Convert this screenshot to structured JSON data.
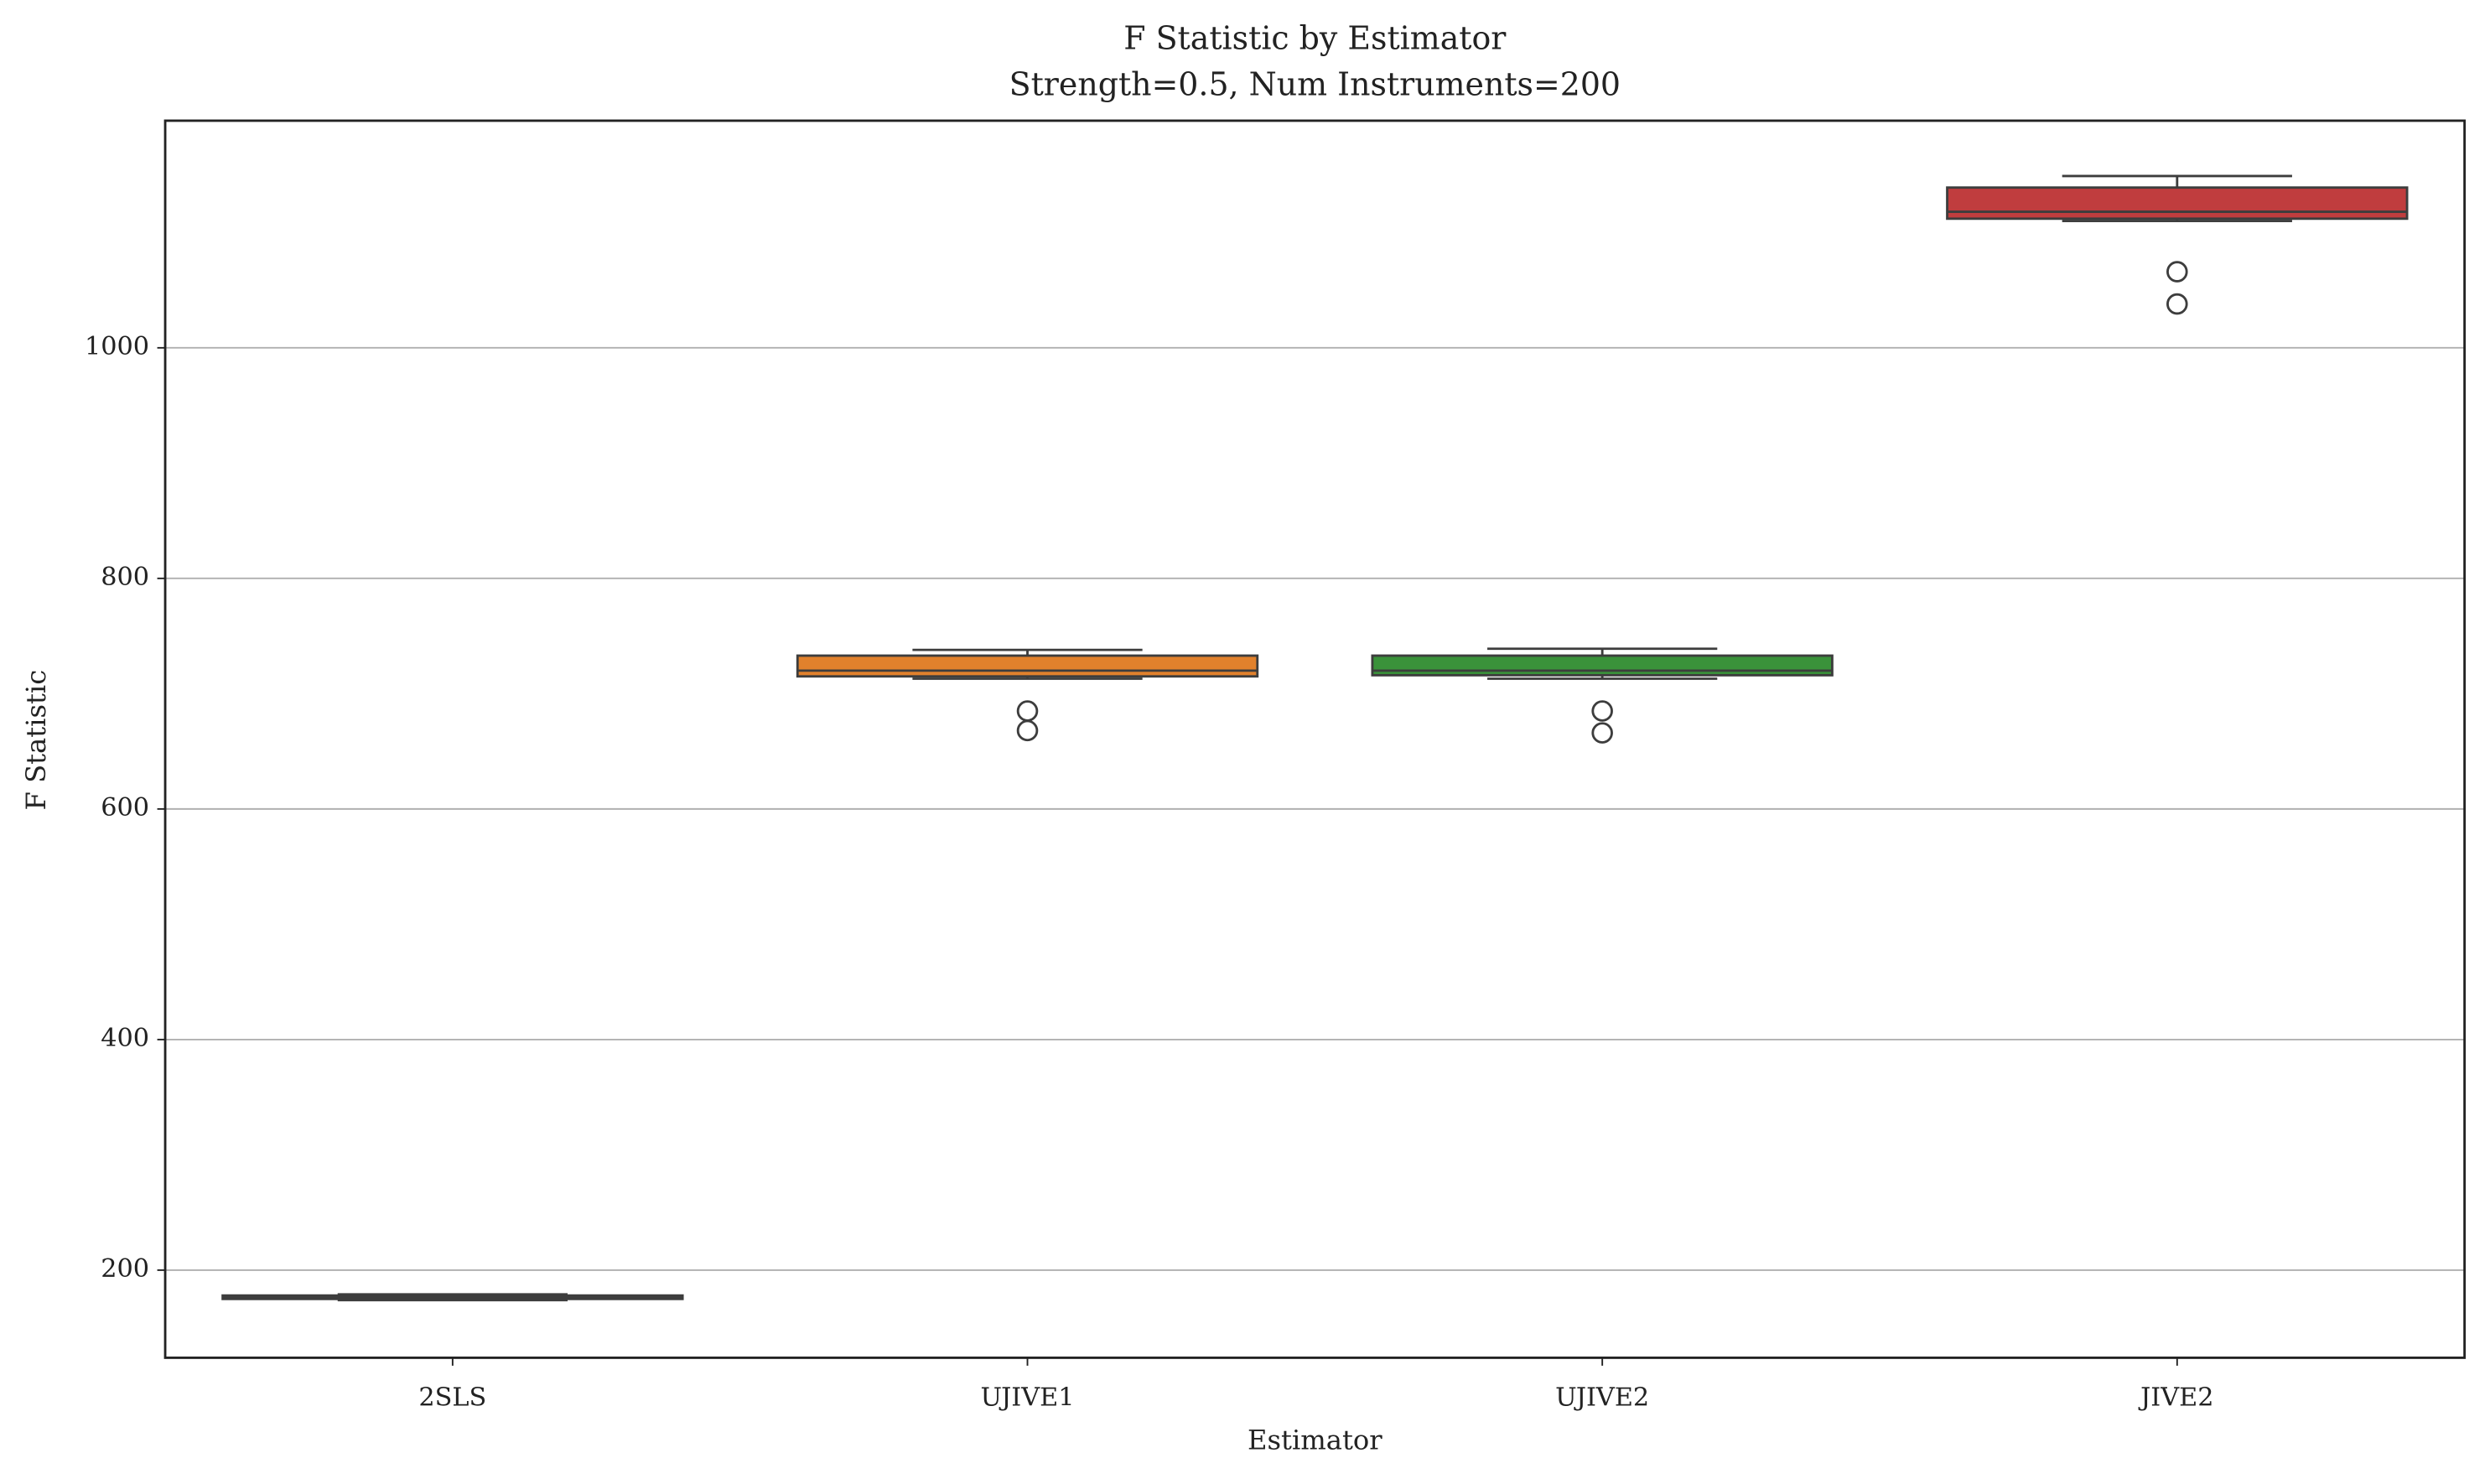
{
  "chart_data": {
    "type": "box",
    "title": "F Statistic by Estimator",
    "subtitle": "Strength=0.5, Num Instruments=200",
    "xlabel": "Estimator",
    "ylabel": "F Statistic",
    "categories": [
      "2SLS",
      "UJIVE1",
      "UJIVE2",
      "JIVE2"
    ],
    "colors": [
      "#3274a1",
      "#e1812c",
      "#3a923a",
      "#c03d3e"
    ],
    "boxes": [
      {
        "min": 174,
        "q1": 175,
        "median": 177,
        "q3": 178,
        "max": 179,
        "outliers": []
      },
      {
        "min": 713,
        "q1": 715,
        "median": 720,
        "q3": 733,
        "max": 738,
        "outliers": [
          685,
          668
        ]
      },
      {
        "min": 713,
        "q1": 716,
        "median": 720,
        "q3": 733,
        "max": 739,
        "outliers": [
          685,
          666
        ]
      },
      {
        "min": 1110,
        "q1": 1112,
        "median": 1118,
        "q3": 1139,
        "max": 1149,
        "outliers": [
          1066,
          1038
        ]
      }
    ],
    "ylim": [
      124,
      1197
    ],
    "yticks": [
      200,
      400,
      600,
      800,
      1000
    ],
    "grid": true
  }
}
